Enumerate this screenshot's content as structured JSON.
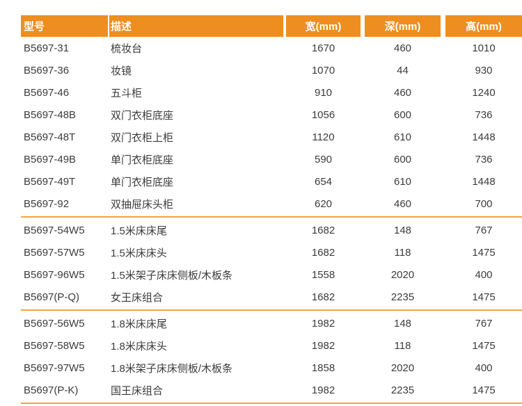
{
  "table": {
    "colors": {
      "header_bg": "#EE8E21",
      "header_text": "#FFFFFF",
      "separator": "#F0A63C",
      "body_text": "#3B3B3B"
    },
    "columns": [
      {
        "key": "model",
        "label": "型号"
      },
      {
        "key": "desc",
        "label": "描述"
      },
      {
        "key": "width",
        "label": "宽(mm)"
      },
      {
        "key": "depth",
        "label": "深(mm)"
      },
      {
        "key": "height",
        "label": "高(mm)"
      }
    ],
    "groups": [
      {
        "rows": [
          [
            "B5697-31",
            "梳妆台",
            "1670",
            "460",
            "1010"
          ],
          [
            "B5697-36",
            "妆镜",
            "1070",
            "44",
            "930"
          ],
          [
            "B5697-46",
            "五斗柜",
            "910",
            "460",
            "1240"
          ],
          [
            "B5697-48B",
            "双门衣柜底座",
            "1056",
            "600",
            "736"
          ],
          [
            "B5697-48T",
            "双门衣柜上柜",
            "1120",
            "610",
            "1448"
          ],
          [
            "B5697-49B",
            "单门衣柜底座",
            "590",
            "600",
            "736"
          ],
          [
            "B5697-49T",
            "单门衣柜底座",
            "654",
            "610",
            "1448"
          ],
          [
            "B5697-92",
            "双抽屉床头柜",
            "620",
            "460",
            "700"
          ]
        ]
      },
      {
        "rows": [
          [
            "B5697-54W5",
            "1.5米床床尾",
            "1682",
            "148",
            "767"
          ],
          [
            "B5697-57W5",
            "1.5米床床头",
            "1682",
            "118",
            "1475"
          ],
          [
            "B5697-96W5",
            "1.5米架子床床侧板/木板条",
            "1558",
            "2020",
            "400"
          ],
          [
            "B5697(P-Q)",
            "女王床组合",
            "1682",
            "2235",
            "1475"
          ]
        ]
      },
      {
        "rows": [
          [
            "B5697-56W5",
            "1.8米床床尾",
            "1982",
            "148",
            "767"
          ],
          [
            "B5697-58W5",
            "1.8米床床头",
            "1982",
            "118",
            "1475"
          ],
          [
            "B5697-97W5",
            "1.8米架子床床侧板/木板条",
            "1858",
            "2020",
            "400"
          ],
          [
            "B5697(P-K)",
            "国王床组合",
            "1982",
            "2235",
            "1475"
          ]
        ]
      }
    ]
  }
}
